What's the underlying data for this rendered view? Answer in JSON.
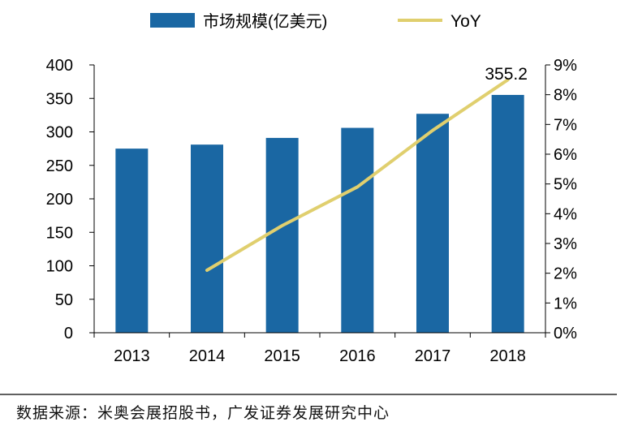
{
  "chart_data": {
    "type": "bar+line",
    "categories": [
      "2013",
      "2014",
      "2015",
      "2016",
      "2017",
      "2018"
    ],
    "series": [
      {
        "name": "市场规模(亿美元)",
        "type": "bar",
        "axis": "left",
        "values": [
          275,
          281,
          291,
          306,
          327,
          355.2
        ],
        "color": "#1a67a3"
      },
      {
        "name": "YoY",
        "type": "line",
        "axis": "right",
        "values": [
          null,
          2.1,
          3.6,
          4.9,
          6.8,
          8.5
        ],
        "color": "#e0cf6e"
      }
    ],
    "left_axis": {
      "min": 0,
      "max": 400,
      "step": 50,
      "ticks": [
        "0",
        "50",
        "100",
        "150",
        "200",
        "250",
        "300",
        "350",
        "400"
      ]
    },
    "right_axis": {
      "min": 0,
      "max": 9,
      "step": 1,
      "ticks": [
        "0%",
        "1%",
        "2%",
        "3%",
        "4%",
        "5%",
        "6%",
        "7%",
        "8%",
        "9%"
      ]
    },
    "data_labels": [
      {
        "category": "2018",
        "text": "355.2"
      }
    ],
    "legend": {
      "position": "top",
      "items": [
        "市场规模(亿美元)",
        "YoY"
      ]
    }
  },
  "source_text": "数据来源：米奥会展招股书，广发证券发展研究中心",
  "colors": {
    "bar": "#1a67a3",
    "line": "#e0cf6e",
    "axis": "#000000"
  }
}
